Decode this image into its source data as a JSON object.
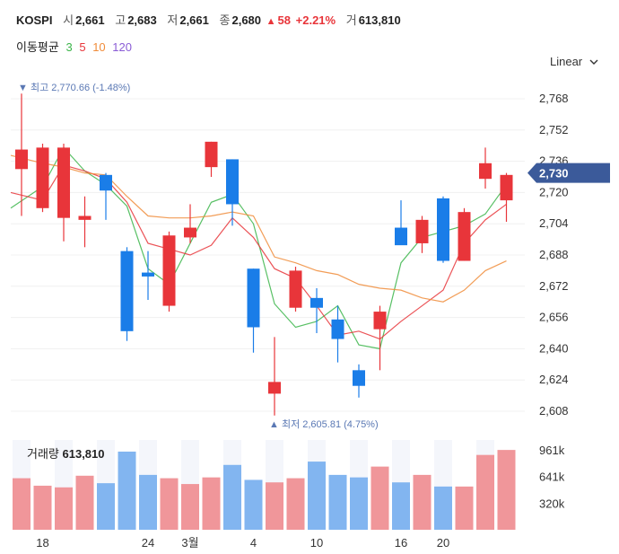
{
  "header": {
    "index": "KOSPI",
    "open_label": "시",
    "open_value": "2,661",
    "high_label": "고",
    "high_value": "2,683",
    "low_label": "저",
    "low_value": "2,661",
    "close_label": "종",
    "close_value": "2,680",
    "change_arrow": "▲",
    "change_value": "58",
    "change_pct": "+2.21%",
    "volume_label": "거",
    "volume_value": "613,810"
  },
  "ma": {
    "label": "이동평균",
    "periods": [
      {
        "label": "3",
        "color": "#3bb54a"
      },
      {
        "label": "5",
        "color": "#e8353a"
      },
      {
        "label": "10",
        "color": "#f08c3a"
      },
      {
        "label": "120",
        "color": "#8a5cd6"
      }
    ]
  },
  "scale": {
    "label": "Linear",
    "icon": "chevron-down-icon"
  },
  "colors": {
    "up": "#e8353a",
    "down": "#1a7de8",
    "vol_up": "#f0969a",
    "vol_down": "#82b5f0",
    "price_tag": "#3b5a9a",
    "annot": "#5a78b4"
  },
  "chart_data": {
    "type": "candlestick",
    "y_ticks": [
      "2,768",
      "2,752",
      "2,736",
      "2,720",
      "2,704",
      "2,688",
      "2,672",
      "2,656",
      "2,640",
      "2,624",
      "2,608"
    ],
    "y_range": [
      2600,
      2776
    ],
    "x_ticks": [
      {
        "index": 1,
        "label": "18"
      },
      {
        "index": 6,
        "label": "24"
      },
      {
        "index": 8,
        "label": "3월"
      },
      {
        "index": 11,
        "label": "4"
      },
      {
        "index": 14,
        "label": "10"
      },
      {
        "index": 18,
        "label": "16"
      },
      {
        "index": 20,
        "label": "20"
      }
    ],
    "candles": [
      {
        "o": 2732,
        "h": 2770.66,
        "l": 2708,
        "c": 2742
      },
      {
        "o": 2712,
        "h": 2745,
        "l": 2710,
        "c": 2743
      },
      {
        "o": 2707,
        "h": 2745,
        "l": 2695,
        "c": 2743
      },
      {
        "o": 2706,
        "h": 2718,
        "l": 2692,
        "c": 2708
      },
      {
        "o": 2729,
        "h": 2730,
        "l": 2706,
        "c": 2721
      },
      {
        "o": 2690,
        "h": 2692,
        "l": 2644,
        "c": 2649
      },
      {
        "o": 2679,
        "h": 2690,
        "l": 2665,
        "c": 2677
      },
      {
        "o": 2662,
        "h": 2700,
        "l": 2659,
        "c": 2698
      },
      {
        "o": 2697,
        "h": 2714,
        "l": 2694,
        "c": 2702
      },
      {
        "o": 2733,
        "h": 2746,
        "l": 2728,
        "c": 2746
      },
      {
        "o": 2737,
        "h": 2737,
        "l": 2703,
        "c": 2714
      },
      {
        "o": 2681,
        "h": 2681,
        "l": 2638,
        "c": 2651
      },
      {
        "o": 2617,
        "h": 2646,
        "l": 2605.81,
        "c": 2623
      },
      {
        "o": 2661,
        "h": 2682,
        "l": 2659,
        "c": 2680
      },
      {
        "o": 2666,
        "h": 2671,
        "l": 2648,
        "c": 2661
      },
      {
        "o": 2655,
        "h": 2662,
        "l": 2633,
        "c": 2645
      },
      {
        "o": 2629,
        "h": 2632,
        "l": 2615,
        "c": 2621
      },
      {
        "o": 2650,
        "h": 2662,
        "l": 2629,
        "c": 2659
      },
      {
        "o": 2702,
        "h": 2716,
        "l": 2694,
        "c": 2693
      },
      {
        "o": 2694,
        "h": 2708,
        "l": 2689,
        "c": 2706
      },
      {
        "o": 2717,
        "h": 2718,
        "l": 2684,
        "c": 2685
      },
      {
        "o": 2685,
        "h": 2712,
        "l": 2685,
        "c": 2710
      },
      {
        "o": 2727,
        "h": 2743,
        "l": 2722,
        "c": 2735
      },
      {
        "o": 2716,
        "h": 2730,
        "l": 2705,
        "c": 2729
      }
    ],
    "ma_lines": [
      {
        "period": "3",
        "color": "#3bb54a",
        "values": [
          2712,
          2723,
          2743,
          2731,
          2724,
          2713,
          2681,
          2673,
          2694,
          2715,
          2719,
          2704,
          2663,
          2651,
          2654,
          2662,
          2642,
          2640,
          2684,
          2697,
          2700,
          2703,
          2709,
          2724
        ]
      },
      {
        "period": "5",
        "color": "#e8353a",
        "values": [
          2720,
          2716,
          2734,
          2731,
          2727,
          2715,
          2694,
          2691,
          2688,
          2693,
          2707,
          2697,
          2681,
          2676,
          2662,
          2647,
          2649,
          2645,
          2654,
          2662,
          2670,
          2694,
          2706,
          2714
        ]
      },
      {
        "period": "10",
        "color": "#f08c3a",
        "values": [
          2739,
          2735,
          2733,
          2730,
          2729,
          2718,
          2708,
          2707,
          2707,
          2708,
          2710,
          2708,
          2687,
          2684,
          2680,
          2678,
          2673,
          2671,
          2670,
          2666,
          2664,
          2670,
          2680,
          2685
        ]
      }
    ],
    "annotations": {
      "high": "최고 2,770.66 (-1.48%)",
      "low": "최저 2,605.81 (4.75%)"
    },
    "current_price": {
      "value": 2730,
      "label": "2,730"
    },
    "volume_label": "거래량",
    "volume_value": "613,810",
    "volume_ticks": [
      {
        "value": 961,
        "label": "961k"
      },
      {
        "value": 641,
        "label": "641k"
      },
      {
        "value": 320,
        "label": "320k"
      }
    ],
    "volume_max": 1080,
    "volume": [
      620,
      530,
      510,
      650,
      560,
      940,
      660,
      620,
      550,
      630,
      780,
      600,
      570,
      620,
      820,
      660,
      630,
      760,
      570,
      660,
      520,
      520,
      900,
      960
    ]
  }
}
